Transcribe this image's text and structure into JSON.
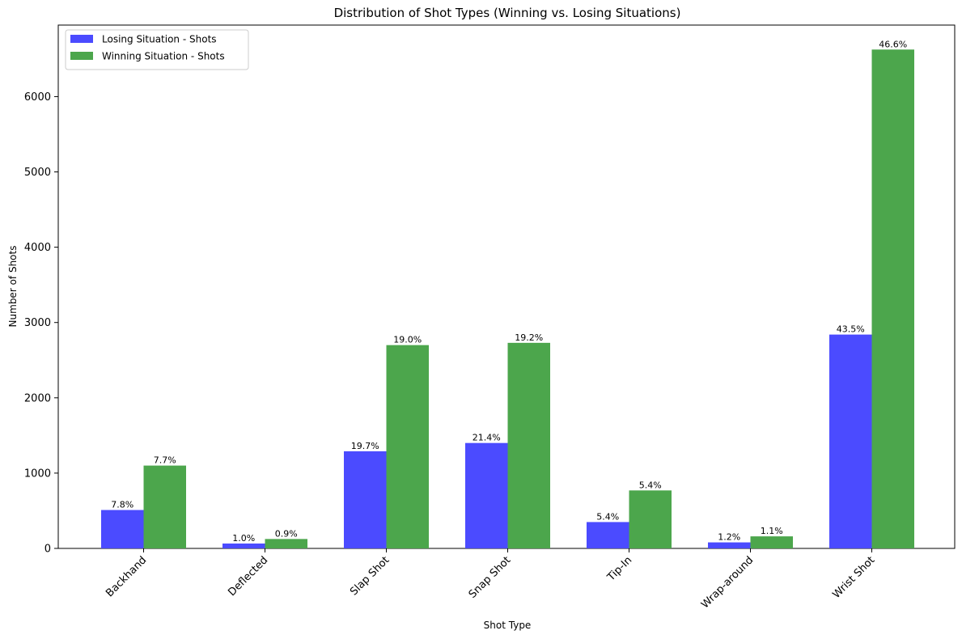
{
  "chart_data": {
    "type": "bar",
    "title": "Distribution of Shot Types (Winning vs. Losing Situations)",
    "xlabel": "Shot Type",
    "ylabel": "Number of Shots",
    "ylim": [
      0,
      6950
    ],
    "yticks": [
      0,
      1000,
      2000,
      3000,
      4000,
      5000,
      6000
    ],
    "legend_placement": "top-left",
    "categories": [
      "Backhand",
      "Deflected",
      "Slap Shot",
      "Snap Shot",
      "Tip-In",
      "Wrap-around",
      "Wrist Shot"
    ],
    "series": [
      {
        "name": "Losing Situation - Shots",
        "color": "#4b4bff",
        "values": [
          510,
          65,
          1290,
          1400,
          350,
          80,
          2840
        ],
        "labels": [
          "7.8%",
          "1.0%",
          "19.7%",
          "21.4%",
          "5.4%",
          "1.2%",
          "43.5%"
        ]
      },
      {
        "name": "Winning Situation - Shots",
        "color": "#4ca64c",
        "values": [
          1100,
          125,
          2700,
          2730,
          770,
          160,
          6625
        ],
        "labels": [
          "7.7%",
          "0.9%",
          "19.0%",
          "19.2%",
          "5.4%",
          "1.1%",
          "46.6%"
        ]
      }
    ],
    "grid": false
  }
}
